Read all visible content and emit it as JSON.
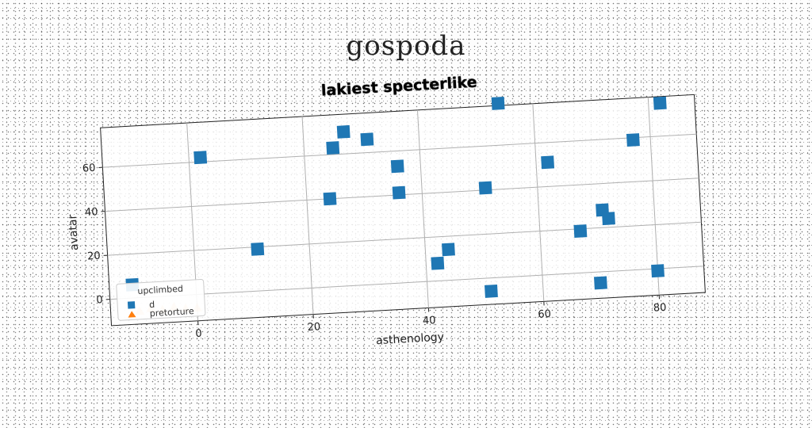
{
  "page": {
    "title": "gospoda"
  },
  "chart_data": {
    "type": "scatter",
    "title": "lakiest specterlike",
    "xlabel": "asthenology",
    "ylabel": "avatar",
    "xlim": [
      -15,
      88
    ],
    "ylim": [
      -12,
      78
    ],
    "xticks": [
      0,
      20,
      40,
      60,
      80
    ],
    "yticks": [
      0,
      20,
      40,
      60
    ],
    "grid": true,
    "legend": {
      "title": "upclimbed",
      "placement": "lower-left",
      "entries": [
        "d",
        "pretorture"
      ]
    },
    "series": [
      {
        "name": "d",
        "marker": "square",
        "color": "#1f77b4",
        "points": [
          {
            "x": -11,
            "y": 6
          },
          {
            "x": 2,
            "y": 62
          },
          {
            "x": 11,
            "y": 19
          },
          {
            "x": 24,
            "y": 40
          },
          {
            "x": 25,
            "y": 63
          },
          {
            "x": 27,
            "y": 70
          },
          {
            "x": 31,
            "y": 66
          },
          {
            "x": 36,
            "y": 53
          },
          {
            "x": 36,
            "y": 41
          },
          {
            "x": 42,
            "y": 8
          },
          {
            "x": 44,
            "y": 14
          },
          {
            "x": 51,
            "y": -6
          },
          {
            "x": 51,
            "y": 41
          },
          {
            "x": 54,
            "y": 79
          },
          {
            "x": 62,
            "y": 51
          },
          {
            "x": 67,
            "y": 19
          },
          {
            "x": 71,
            "y": 28
          },
          {
            "x": 72,
            "y": 24
          },
          {
            "x": 70,
            "y": -5
          },
          {
            "x": 77,
            "y": 59
          },
          {
            "x": 80,
            "y": -1
          },
          {
            "x": 82,
            "y": 75
          }
        ]
      },
      {
        "name": "pretorture",
        "marker": "triangle",
        "color": "#ff7f0e",
        "points": [
          {
            "x": -10,
            "y": -6
          },
          {
            "x": -8,
            "y": -5
          },
          {
            "x": -6,
            "y": -6
          },
          {
            "x": -4,
            "y": -5
          },
          {
            "x": -2,
            "y": -6
          },
          {
            "x": 0,
            "y": -6
          }
        ]
      }
    ]
  }
}
